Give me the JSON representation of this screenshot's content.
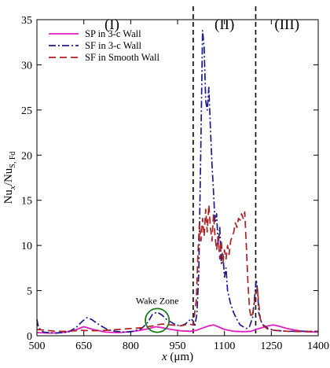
{
  "chart_data": {
    "type": "line",
    "xlabel_var": "x",
    "xlabel_unit": " (μm)",
    "ylabel_main": "Nu",
    "ylabel_sub1": "x",
    "ylabel_mid": "/Nu",
    "ylabel_sub2": "S, Fd",
    "xlim": [
      500,
      1400
    ],
    "ylim": [
      0,
      35
    ],
    "xticks": [
      500,
      650,
      800,
      950,
      1100,
      1250,
      1400
    ],
    "yticks": [
      0,
      5,
      10,
      15,
      20,
      25,
      30,
      35
    ],
    "xtick_labels": [
      "500",
      "650",
      "800",
      "950",
      "1100",
      "1250",
      "1400"
    ],
    "ytick_labels": [
      "0",
      "5",
      "10",
      "15",
      "20",
      "25",
      "30",
      "35"
    ],
    "regions": [
      {
        "label": "(I)",
        "x": 740
      },
      {
        "label": "(II)",
        "x": 1100
      },
      {
        "label": "(III)",
        "x": 1300
      }
    ],
    "region_boundaries": [
      1000,
      1200
    ],
    "annotation": {
      "text": "Wake Zone",
      "cx": 885,
      "cy": 1.7,
      "r_x": 38
    },
    "legend_position": "top-left",
    "series": [
      {
        "name": "SP in 3-c Wall",
        "color": "#e020c0",
        "dash": "solid",
        "points": [
          [
            500,
            0.35
          ],
          [
            540,
            0.3
          ],
          [
            580,
            0.35
          ],
          [
            620,
            0.6
          ],
          [
            650,
            1.0
          ],
          [
            680,
            0.7
          ],
          [
            720,
            0.4
          ],
          [
            760,
            0.35
          ],
          [
            800,
            0.45
          ],
          [
            830,
            0.6
          ],
          [
            860,
            0.8
          ],
          [
            880,
            1.0
          ],
          [
            900,
            0.9
          ],
          [
            930,
            0.7
          ],
          [
            960,
            0.55
          ],
          [
            990,
            0.5
          ],
          [
            1010,
            0.6
          ],
          [
            1030,
            0.85
          ],
          [
            1050,
            1.1
          ],
          [
            1065,
            1.2
          ],
          [
            1080,
            1.0
          ],
          [
            1100,
            0.7
          ],
          [
            1130,
            0.5
          ],
          [
            1160,
            0.45
          ],
          [
            1185,
            0.5
          ],
          [
            1200,
            0.7
          ],
          [
            1220,
            0.9
          ],
          [
            1240,
            1.1
          ],
          [
            1255,
            1.2
          ],
          [
            1270,
            1.1
          ],
          [
            1300,
            0.8
          ],
          [
            1330,
            0.6
          ],
          [
            1360,
            0.45
          ],
          [
            1400,
            0.4
          ]
        ]
      },
      {
        "name": "SF in 3-c Wall",
        "color": "#1c1c8c",
        "dash": "dashdot",
        "points": [
          [
            500,
            1.8
          ],
          [
            505,
            0.9
          ],
          [
            520,
            0.4
          ],
          [
            560,
            0.3
          ],
          [
            600,
            0.4
          ],
          [
            625,
            0.9
          ],
          [
            645,
            1.6
          ],
          [
            660,
            2.0
          ],
          [
            675,
            1.8
          ],
          [
            700,
            1.2
          ],
          [
            725,
            0.7
          ],
          [
            750,
            0.5
          ],
          [
            780,
            0.4
          ],
          [
            810,
            0.5
          ],
          [
            835,
            0.8
          ],
          [
            855,
            1.5
          ],
          [
            870,
            2.4
          ],
          [
            885,
            2.6
          ],
          [
            900,
            2.3
          ],
          [
            915,
            1.8
          ],
          [
            930,
            1.5
          ],
          [
            945,
            1.2
          ],
          [
            960,
            1.1
          ],
          [
            975,
            1.3
          ],
          [
            985,
            1.6
          ],
          [
            993,
            1.9
          ],
          [
            1000,
            1.6
          ],
          [
            1005,
            1.0
          ],
          [
            1012,
            2.5
          ],
          [
            1018,
            7.0
          ],
          [
            1025,
            22.0
          ],
          [
            1030,
            33.8
          ],
          [
            1035,
            32.0
          ],
          [
            1040,
            26.0
          ],
          [
            1045,
            25.0
          ],
          [
            1050,
            27.5
          ],
          [
            1055,
            23.0
          ],
          [
            1060,
            19.0
          ],
          [
            1065,
            16.0
          ],
          [
            1070,
            12.5
          ],
          [
            1075,
            13.5
          ],
          [
            1080,
            10.0
          ],
          [
            1085,
            12.0
          ],
          [
            1090,
            8.0
          ],
          [
            1095,
            9.0
          ],
          [
            1100,
            6.5
          ],
          [
            1105,
            7.5
          ],
          [
            1110,
            5.0
          ],
          [
            1120,
            3.5
          ],
          [
            1130,
            2.5
          ],
          [
            1140,
            1.8
          ],
          [
            1150,
            1.2
          ],
          [
            1160,
            1.0
          ],
          [
            1170,
            0.8
          ],
          [
            1180,
            1.0
          ],
          [
            1190,
            2.0
          ],
          [
            1197,
            4.5
          ],
          [
            1202,
            6.2
          ],
          [
            1206,
            5.0
          ],
          [
            1210,
            2.5
          ],
          [
            1220,
            1.3
          ],
          [
            1240,
            0.8
          ],
          [
            1260,
            0.6
          ],
          [
            1300,
            0.5
          ],
          [
            1350,
            0.5
          ],
          [
            1400,
            0.5
          ]
        ]
      },
      {
        "name": "SF in Smooth Wall",
        "color": "#b02020",
        "dash": "dash",
        "points": [
          [
            500,
            0.7
          ],
          [
            530,
            0.6
          ],
          [
            560,
            0.5
          ],
          [
            600,
            0.5
          ],
          [
            640,
            0.6
          ],
          [
            680,
            0.55
          ],
          [
            720,
            0.6
          ],
          [
            760,
            0.7
          ],
          [
            800,
            0.8
          ],
          [
            840,
            0.9
          ],
          [
            870,
            1.1
          ],
          [
            900,
            1.3
          ],
          [
            930,
            1.2
          ],
          [
            960,
            1.1
          ],
          [
            985,
            1.3
          ],
          [
            1000,
            1.2
          ],
          [
            1010,
            4.0
          ],
          [
            1015,
            9.0
          ],
          [
            1020,
            12.5
          ],
          [
            1025,
            10.5
          ],
          [
            1030,
            13.0
          ],
          [
            1035,
            11.0
          ],
          [
            1040,
            14.0
          ],
          [
            1045,
            11.5
          ],
          [
            1050,
            14.5
          ],
          [
            1055,
            12.0
          ],
          [
            1060,
            10.5
          ],
          [
            1065,
            13.5
          ],
          [
            1070,
            11.0
          ],
          [
            1075,
            9.5
          ],
          [
            1080,
            11.0
          ],
          [
            1085,
            8.5
          ],
          [
            1090,
            10.5
          ],
          [
            1095,
            8.0
          ],
          [
            1100,
            9.5
          ],
          [
            1105,
            8.5
          ],
          [
            1110,
            10.0
          ],
          [
            1115,
            9.0
          ],
          [
            1120,
            10.5
          ],
          [
            1125,
            11.0
          ],
          [
            1130,
            11.5
          ],
          [
            1135,
            12.5
          ],
          [
            1140,
            12.0
          ],
          [
            1145,
            13.0
          ],
          [
            1150,
            12.8
          ],
          [
            1155,
            13.5
          ],
          [
            1160,
            13.0
          ],
          [
            1165,
            13.7
          ],
          [
            1170,
            10.0
          ],
          [
            1175,
            6.0
          ],
          [
            1180,
            3.0
          ],
          [
            1185,
            2.0
          ],
          [
            1190,
            2.5
          ],
          [
            1195,
            3.5
          ],
          [
            1200,
            4.5
          ],
          [
            1205,
            5.3
          ],
          [
            1210,
            3.5
          ],
          [
            1215,
            1.8
          ],
          [
            1225,
            1.1
          ],
          [
            1240,
            0.7
          ],
          [
            1260,
            0.6
          ],
          [
            1300,
            0.5
          ],
          [
            1350,
            0.45
          ],
          [
            1400,
            0.5
          ]
        ]
      }
    ]
  }
}
